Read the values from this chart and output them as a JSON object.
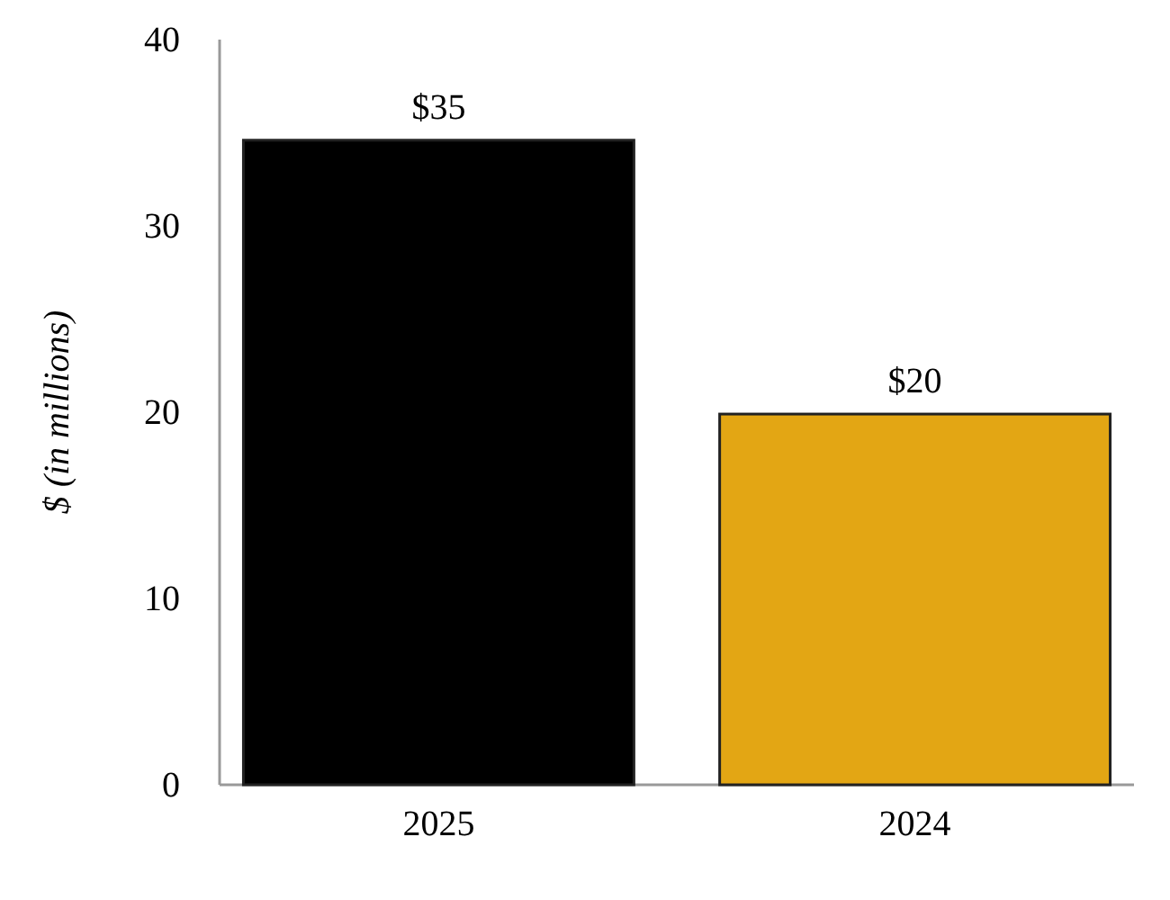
{
  "chart_data": {
    "type": "bar",
    "categories": [
      "2025",
      "2024"
    ],
    "values": [
      34.6,
      19.9
    ],
    "colors": [
      "#000000",
      "#e3a614"
    ],
    "value_labels": [
      "$35",
      "$20"
    ],
    "ylabel": "$ (in millions)",
    "ylim": [
      0,
      40
    ],
    "yticks": [
      0,
      10,
      20,
      30,
      40
    ],
    "grid": false
  }
}
